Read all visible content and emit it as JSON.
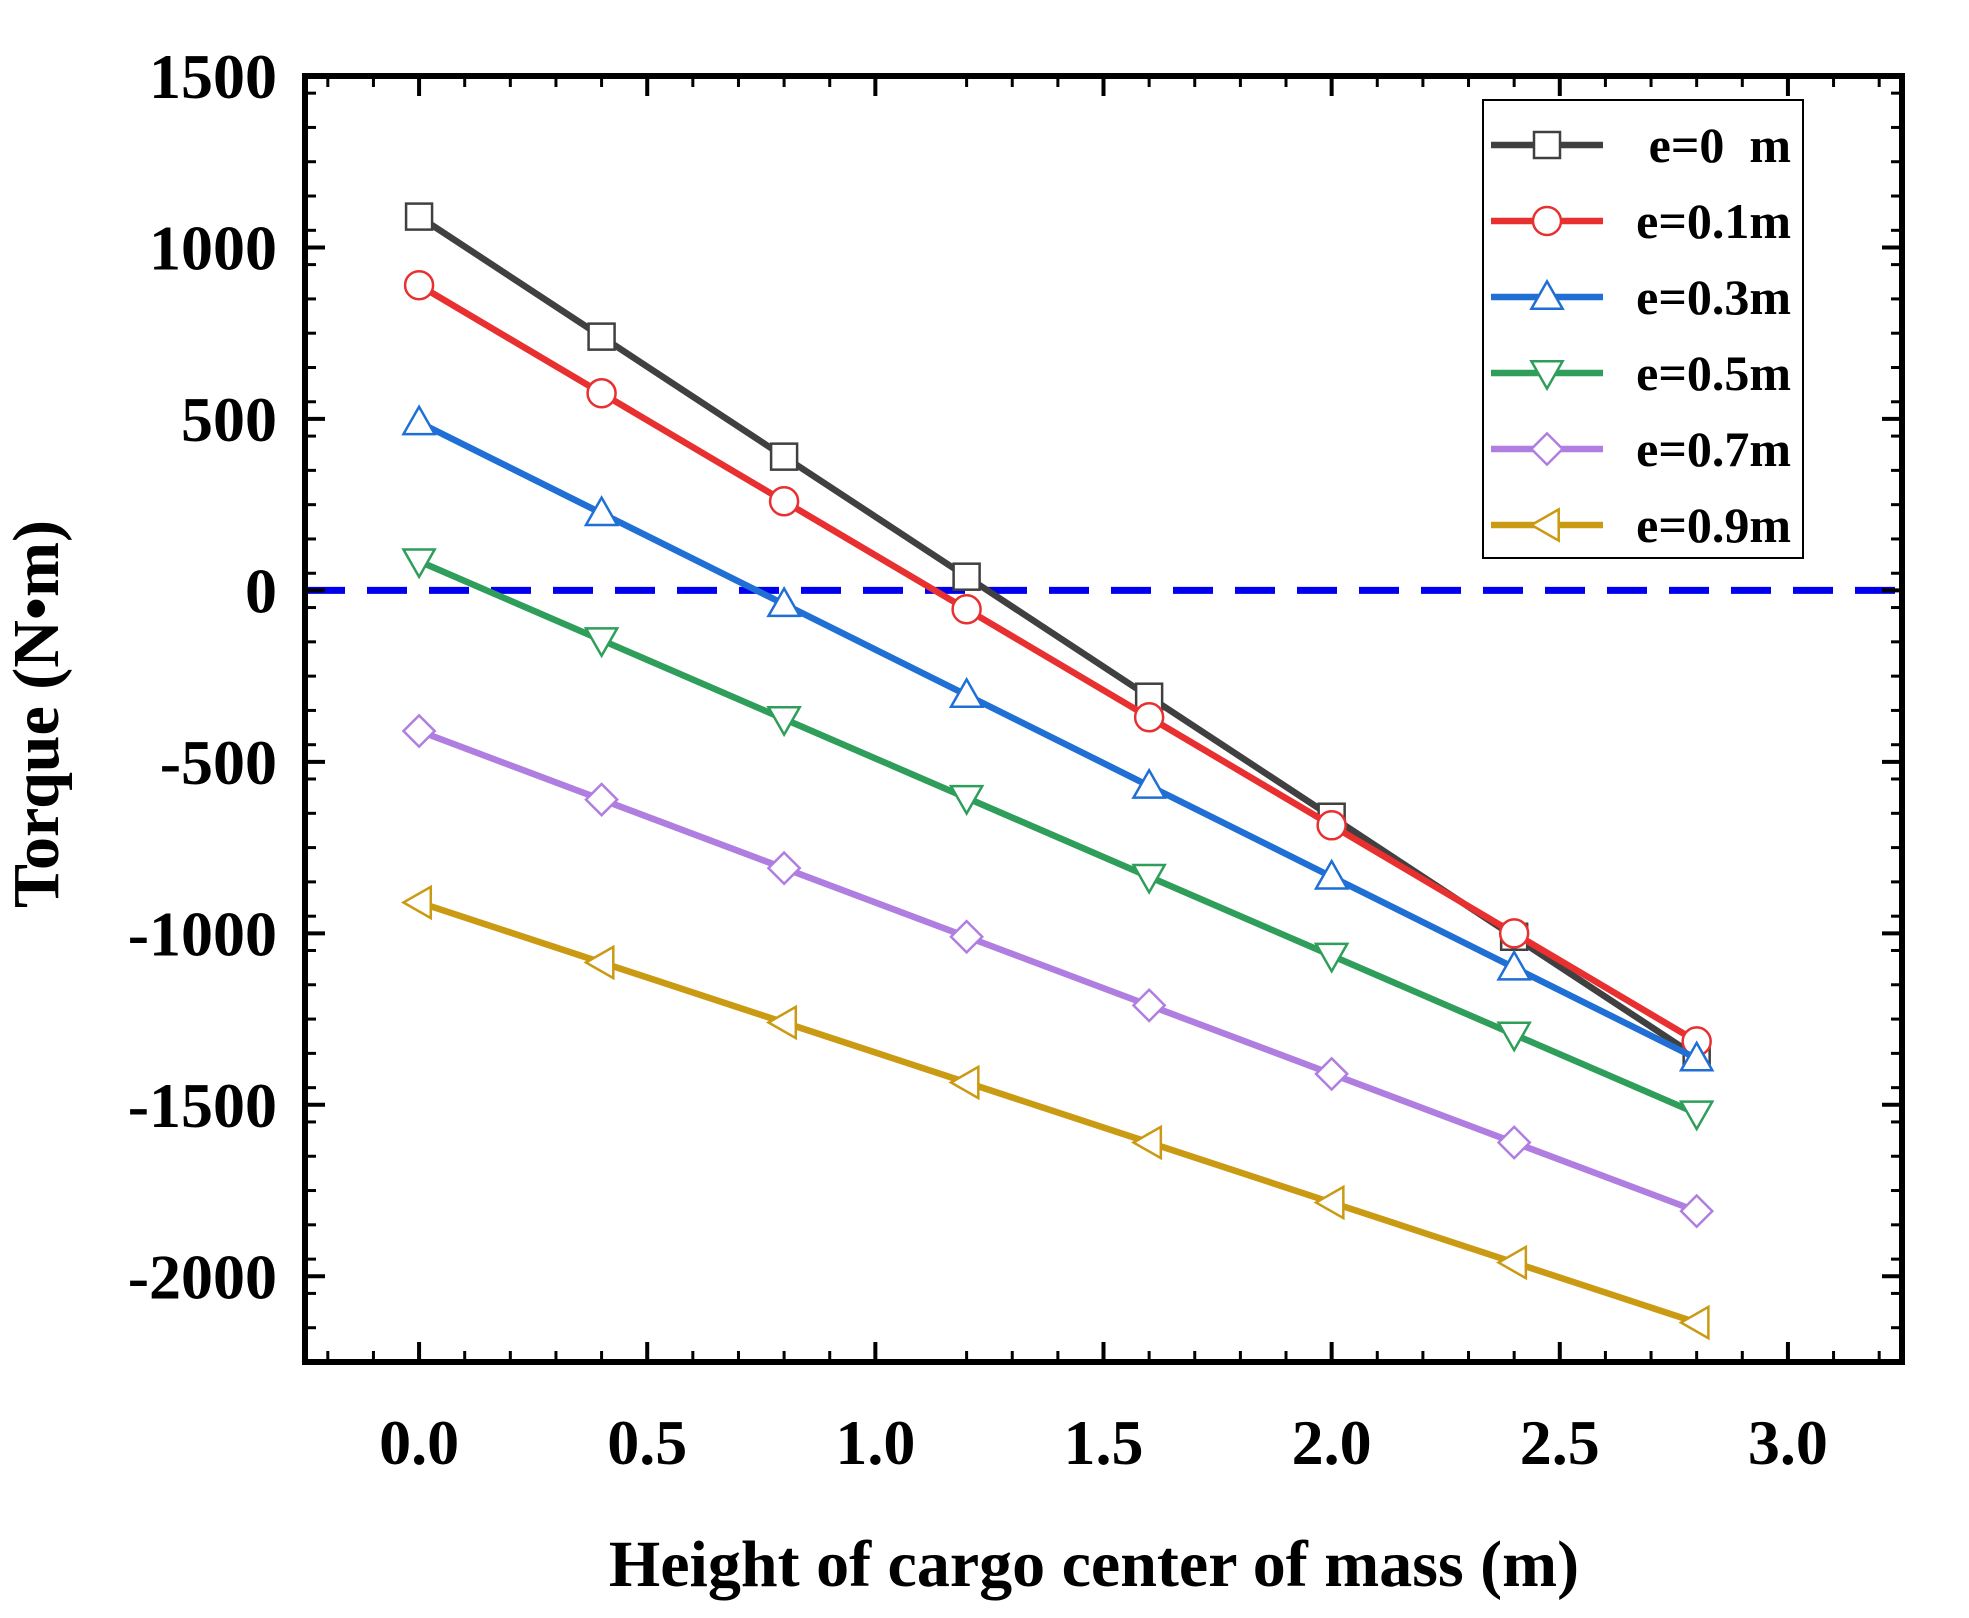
{
  "chart_data": {
    "type": "line",
    "title": "",
    "xlabel": "Height of cargo center of mass (m)",
    "ylabel": "Torque (N•m)",
    "xlim": [
      -0.25,
      3.25
    ],
    "ylim": [
      -2250,
      1500
    ],
    "xticks": [
      0.0,
      0.5,
      1.0,
      1.5,
      2.0,
      2.5,
      3.0
    ],
    "xtick_labels": [
      "0.0",
      "0.5",
      "1.0",
      "1.5",
      "2.0",
      "2.5",
      "3.0"
    ],
    "yticks": [
      1500,
      1000,
      500,
      0,
      -500,
      -1000,
      -1500,
      -2000
    ],
    "ytick_labels": [
      "1500",
      "1000",
      "500",
      "0",
      "-500",
      "-1000",
      "-1500",
      "-2000"
    ],
    "x": [
      0.0,
      0.4,
      0.8,
      1.2,
      1.6,
      2.0,
      2.4,
      2.8
    ],
    "reference_line": {
      "y": 0,
      "style": "dashed",
      "color": "#0000ee"
    },
    "legend_position": "top-right",
    "series": [
      {
        "name": "e=0  m",
        "marker": "square",
        "color": "#404040",
        "values": [
          1090,
          740,
          390,
          40,
          -310,
          -660,
          -1010,
          -1360
        ]
      },
      {
        "name": "e=0.1m",
        "marker": "circle",
        "color": "#e83030",
        "values": [
          890,
          575,
          260,
          -55,
          -370,
          -685,
          -1000,
          -1315
        ]
      },
      {
        "name": "e=0.3m",
        "marker": "triangle-up",
        "color": "#1f6fd4",
        "values": [
          490,
          225,
          -40,
          -305,
          -570,
          -835,
          -1100,
          -1365
        ]
      },
      {
        "name": "e=0.5m",
        "marker": "triangle-down",
        "color": "#2e9e5a",
        "values": [
          85,
          -145,
          -375,
          -605,
          -835,
          -1065,
          -1295,
          -1525
        ]
      },
      {
        "name": "e=0.7m",
        "marker": "diamond",
        "color": "#b07ee0",
        "values": [
          -410,
          -610,
          -810,
          -1010,
          -1210,
          -1410,
          -1610,
          -1810
        ]
      },
      {
        "name": "e=0.9m",
        "marker": "triangle-left",
        "color": "#c99a12",
        "values": [
          -910,
          -1085,
          -1260,
          -1435,
          -1610,
          -1785,
          -1960,
          -2135
        ]
      }
    ]
  }
}
